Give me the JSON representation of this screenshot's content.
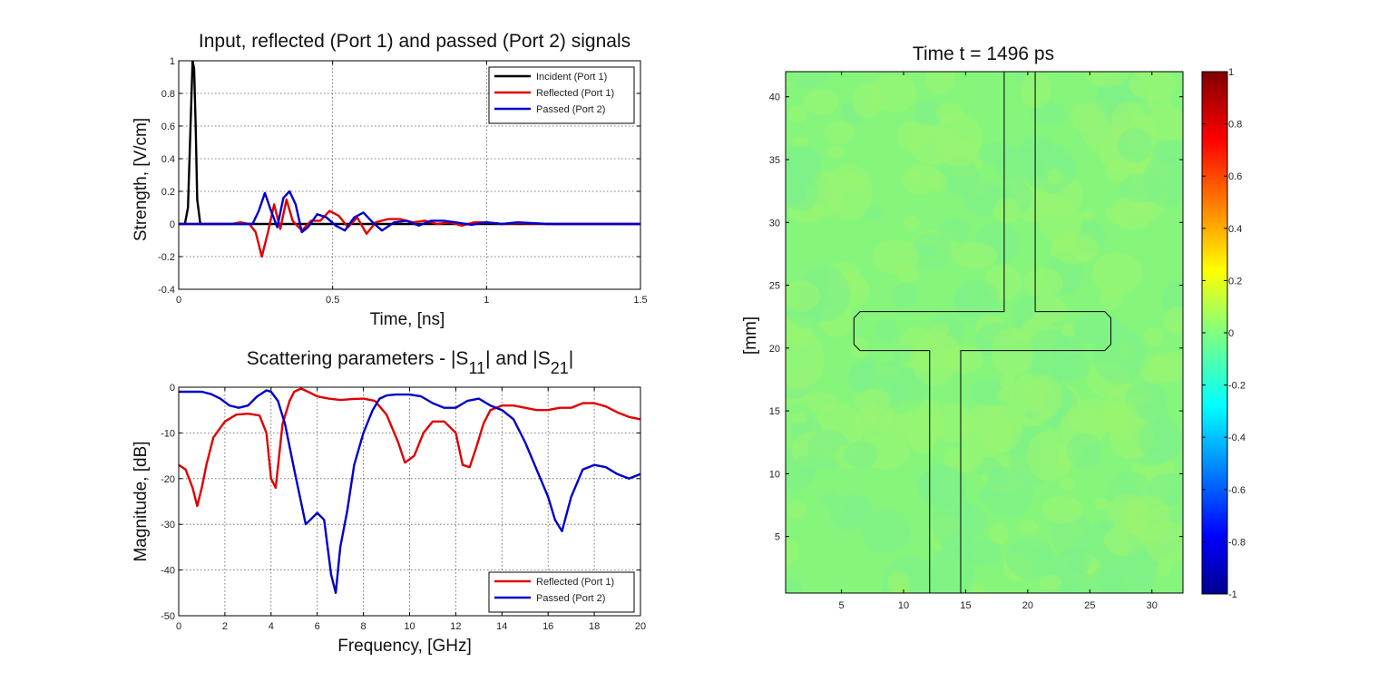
{
  "chart_data": [
    {
      "type": "line",
      "title": "Input, reflected (Port 1) and passed (Port 2) signals",
      "xlabel": "Time, [ns]",
      "ylabel": "Strength, [V/cm]",
      "xlim": [
        0,
        1.5
      ],
      "ylim": [
        -0.4,
        1
      ],
      "xticks": [
        "0",
        "0.5",
        "1",
        "1.5"
      ],
      "yticks": [
        "-0.4",
        "-0.2",
        "0",
        "0.2",
        "0.4",
        "0.6",
        "0.8",
        "1"
      ],
      "grid": true,
      "legend": "top-right",
      "series": [
        {
          "name": "Incident (Port 1)",
          "color": "#000000",
          "x": [
            0,
            0.02,
            0.03,
            0.04,
            0.045,
            0.05,
            0.055,
            0.06,
            0.07,
            1.5
          ],
          "y": [
            0,
            0,
            0.1,
            0.7,
            1.0,
            0.95,
            0.6,
            0.15,
            0,
            0
          ]
        },
        {
          "name": "Reflected (Port 1)",
          "color": "#e00000",
          "x": [
            0,
            0.17,
            0.2,
            0.23,
            0.25,
            0.27,
            0.29,
            0.31,
            0.33,
            0.35,
            0.37,
            0.4,
            0.43,
            0.46,
            0.49,
            0.52,
            0.55,
            0.58,
            0.61,
            0.64,
            0.68,
            0.72,
            0.76,
            0.8,
            0.84,
            0.88,
            0.92,
            0.96,
            1.0,
            1.05,
            1.1,
            1.2,
            1.5
          ],
          "y": [
            0,
            0,
            0.01,
            0,
            -0.05,
            -0.2,
            -0.05,
            0.12,
            -0.03,
            0.15,
            0.02,
            -0.04,
            0.02,
            0.02,
            0.08,
            0.05,
            -0.02,
            0.04,
            -0.06,
            0.01,
            0.03,
            0.03,
            0.01,
            0.02,
            0,
            0.01,
            -0.01,
            0.01,
            0.01,
            0,
            0.005,
            0,
            0
          ]
        },
        {
          "name": "Passed (Port 2)",
          "color": "#0000cc",
          "x": [
            0,
            0.2,
            0.24,
            0.26,
            0.28,
            0.3,
            0.32,
            0.34,
            0.36,
            0.38,
            0.4,
            0.42,
            0.45,
            0.48,
            0.51,
            0.54,
            0.57,
            0.6,
            0.63,
            0.66,
            0.7,
            0.74,
            0.78,
            0.82,
            0.86,
            0.9,
            0.95,
            1.0,
            1.05,
            1.1,
            1.2,
            1.5
          ],
          "y": [
            0,
            0,
            0,
            0.08,
            0.19,
            0.08,
            -0.02,
            0.16,
            0.2,
            0.12,
            -0.05,
            -0.02,
            0.06,
            0.04,
            -0.01,
            -0.04,
            0.04,
            0.07,
            0.01,
            -0.04,
            0.01,
            0.02,
            -0.01,
            0.02,
            0.02,
            0.01,
            -0.005,
            0.01,
            0,
            0.01,
            0,
            0
          ]
        }
      ]
    },
    {
      "type": "line",
      "title": "Scattering parameters - |S11| and |S21|",
      "title_parts": [
        "Scattering parameters - |S",
        "11",
        "| and |S",
        "21",
        "|"
      ],
      "xlabel": "Frequency, [GHz]",
      "ylabel": "Magnitude, [dB]",
      "xlim": [
        0,
        20
      ],
      "ylim": [
        -50,
        0
      ],
      "xticks": [
        "0",
        "2",
        "4",
        "6",
        "8",
        "10",
        "12",
        "14",
        "16",
        "18",
        "20"
      ],
      "yticks": [
        "-50",
        "-40",
        "-30",
        "-20",
        "-10",
        "0"
      ],
      "grid": true,
      "legend": "bottom-right",
      "series": [
        {
          "name": "Reflected (Port 1)",
          "color": "#e00000",
          "x": [
            0,
            0.3,
            0.6,
            0.8,
            1.0,
            1.2,
            1.5,
            2.0,
            2.5,
            3.0,
            3.5,
            3.8,
            4.0,
            4.2,
            4.5,
            4.8,
            5.0,
            5.3,
            5.6,
            6.0,
            6.5,
            7.0,
            7.5,
            8.0,
            8.5,
            9.0,
            9.5,
            9.8,
            10.2,
            10.6,
            11.0,
            11.5,
            12.0,
            12.3,
            12.6,
            12.9,
            13.2,
            13.5,
            14.0,
            14.5,
            15.0,
            15.5,
            16.0,
            16.5,
            17.0,
            17.5,
            18.0,
            18.5,
            19.0,
            19.5,
            20.0
          ],
          "y": [
            -17,
            -18,
            -22,
            -26,
            -22,
            -17,
            -11,
            -7.5,
            -6,
            -5.8,
            -6.2,
            -10,
            -20,
            -22,
            -8,
            -3,
            -1,
            -0.3,
            -1,
            -2,
            -2.5,
            -2.8,
            -2.6,
            -2.5,
            -3,
            -6,
            -12,
            -16.5,
            -15,
            -10,
            -7.5,
            -7.5,
            -10,
            -17,
            -17.5,
            -13,
            -8,
            -5,
            -4,
            -4,
            -4.5,
            -5,
            -5,
            -4.5,
            -4.5,
            -3.5,
            -3.5,
            -4.2,
            -5.5,
            -6.5,
            -7
          ]
        },
        {
          "name": "Passed (Port 2)",
          "color": "#0000cc",
          "x": [
            0,
            0.5,
            1.0,
            1.4,
            1.8,
            2.2,
            2.6,
            3.0,
            3.4,
            3.8,
            4.0,
            4.3,
            4.6,
            5.0,
            5.5,
            5.7,
            6.0,
            6.3,
            6.6,
            6.8,
            7.0,
            7.3,
            7.6,
            8.0,
            8.4,
            8.7,
            9.0,
            9.4,
            10.0,
            10.5,
            11.0,
            11.5,
            12.0,
            12.5,
            13.0,
            13.5,
            14.0,
            14.5,
            15.0,
            15.5,
            16.0,
            16.3,
            16.6,
            17.0,
            17.5,
            18.0,
            18.5,
            19.0,
            19.5,
            20.0
          ],
          "y": [
            -1,
            -1,
            -1,
            -1.5,
            -2.5,
            -4,
            -4.5,
            -4,
            -2,
            -0.7,
            -1,
            -3,
            -8,
            -18,
            -30,
            -29,
            -27.5,
            -29,
            -41,
            -45,
            -35,
            -27,
            -17,
            -10,
            -5,
            -2.5,
            -1.8,
            -1.6,
            -1.6,
            -2,
            -3.5,
            -4.5,
            -4.5,
            -3,
            -2.5,
            -4,
            -5,
            -7,
            -12,
            -18,
            -24,
            -29,
            -31.5,
            -24,
            -18,
            -17,
            -17.5,
            -19,
            -20,
            -19
          ]
        }
      ]
    },
    {
      "type": "heatmap",
      "title": "Time t = 1496 ps",
      "ylabel": "[mm]",
      "xlim": [
        0.5,
        32.5
      ],
      "ylim": [
        0.5,
        42
      ],
      "xticks": [
        "5",
        "10",
        "15",
        "20",
        "25",
        "30"
      ],
      "yticks": [
        "5",
        "10",
        "15",
        "20",
        "25",
        "30",
        "35",
        "40"
      ],
      "colorbar_range": [
        -1,
        1
      ],
      "colorbar_ticks": [
        "1",
        "0.8",
        "0.6",
        "0.4",
        "0.2",
        "0",
        "-0.2",
        "-0.4",
        "-0.6",
        "-0.8",
        "-1"
      ],
      "colormap": "jet",
      "field_value": 0.05,
      "overlay_outline_mm": [
        [
          12.1,
          0.5
        ],
        [
          12.1,
          19.8
        ],
        [
          6.5,
          19.8
        ],
        [
          6,
          20.3
        ],
        [
          6,
          22.4
        ],
        [
          6.5,
          22.9
        ],
        [
          18.1,
          22.9
        ],
        [
          18.1,
          42
        ],
        [
          20.6,
          42
        ],
        [
          20.6,
          22.9
        ],
        [
          26.2,
          22.9
        ],
        [
          26.7,
          22.4
        ],
        [
          26.7,
          20.3
        ],
        [
          26.2,
          19.8
        ],
        [
          14.6,
          19.8
        ],
        [
          14.6,
          0.5
        ]
      ]
    }
  ]
}
